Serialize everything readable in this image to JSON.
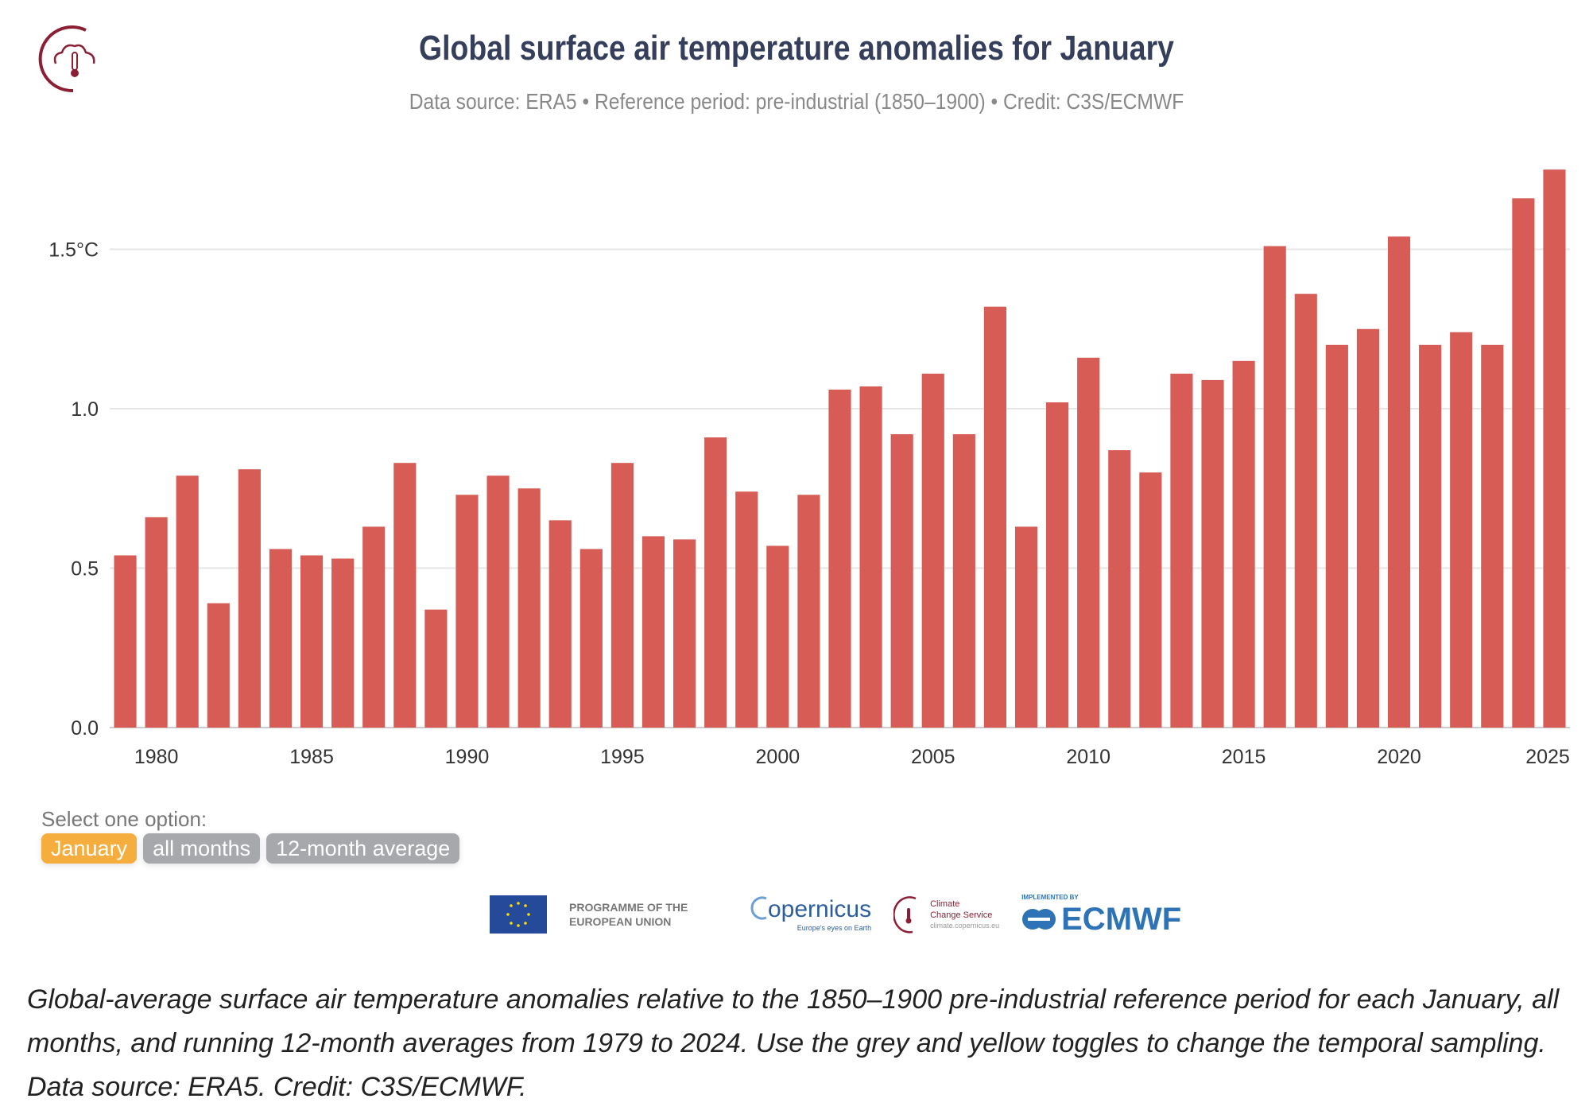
{
  "header": {
    "title": "Global surface air temperature anomalies for January",
    "subtitle": "Data source: ERA5 • Reference period: pre-industrial (1850–1900) • Credit: C3S/ECMWF"
  },
  "controls": {
    "label": "Select one option:",
    "options": [
      {
        "label": "January",
        "active": true
      },
      {
        "label": "all months",
        "active": false
      },
      {
        "label": "12-month average",
        "active": false
      }
    ]
  },
  "logos": {
    "eu": "PROGRAMME OF THE EUROPEAN UNION",
    "copernicus": "opernicus",
    "copernicus_tagline": "Europe's eyes on Earth",
    "c3s_line1": "Climate",
    "c3s_line2": "Change Service",
    "c3s_url": "climate.copernicus.eu",
    "ecmwf_top": "IMPLEMENTED BY",
    "ecmwf": "ECMWF"
  },
  "caption": "Global-average surface air temperature anomalies relative to the 1850–1900 pre-industrial reference period for each January, all months, and running 12-month averages from 1979 to 2024. Use the grey and yellow toggles to change the temporal sampling. Data source: ERA5. Credit: C3S/ECMWF.",
  "colors": {
    "bar": "#d65c55",
    "title": "#353f5b",
    "active": "#f5ae3d",
    "inactive": "#a6a8ab"
  },
  "chart_data": {
    "type": "bar",
    "title": "Global surface air temperature anomalies for January",
    "xlabel": "",
    "ylabel": "°C",
    "ylim": [
      0,
      1.78
    ],
    "yticks": [
      {
        "v": 0,
        "label": "0.0"
      },
      {
        "v": 0.5,
        "label": "0.5"
      },
      {
        "v": 1,
        "label": "1.0"
      },
      {
        "v": 1.5,
        "label": "1.5°C"
      }
    ],
    "xticks": [
      1980,
      1985,
      1990,
      1995,
      2000,
      2005,
      2010,
      2015,
      2020,
      2025
    ],
    "grid": true,
    "x": [
      1979,
      1980,
      1981,
      1982,
      1983,
      1984,
      1985,
      1986,
      1987,
      1988,
      1989,
      1990,
      1991,
      1992,
      1993,
      1994,
      1995,
      1996,
      1997,
      1998,
      1999,
      2000,
      2001,
      2002,
      2003,
      2004,
      2005,
      2006,
      2007,
      2008,
      2009,
      2010,
      2011,
      2012,
      2013,
      2014,
      2015,
      2016,
      2017,
      2018,
      2019,
      2020,
      2021,
      2022,
      2023,
      2024,
      2025
    ],
    "values": [
      0.54,
      0.66,
      0.79,
      0.39,
      0.81,
      0.56,
      0.54,
      0.53,
      0.63,
      0.83,
      0.37,
      0.73,
      0.79,
      0.75,
      0.65,
      0.56,
      0.83,
      0.6,
      0.59,
      0.91,
      0.74,
      0.57,
      0.73,
      1.06,
      1.07,
      0.92,
      1.11,
      0.92,
      1.32,
      0.63,
      1.02,
      1.16,
      0.87,
      0.8,
      1.11,
      1.09,
      1.15,
      1.51,
      1.36,
      1.2,
      1.25,
      1.54,
      1.2,
      1.24,
      1.2,
      1.66,
      1.75
    ]
  }
}
